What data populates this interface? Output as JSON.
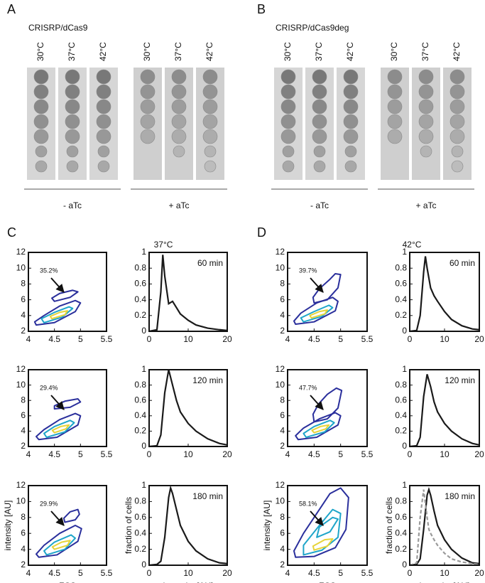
{
  "panels": [
    {
      "letter": "A",
      "title": "CRISRP/dCas9",
      "groups": [
        {
          "temps": [
            "30°C",
            "37°C",
            "42°C"
          ],
          "label": "- aTc"
        },
        {
          "temps": [
            "30°C",
            "37°C",
            "42°C"
          ],
          "label": "+ aTc"
        }
      ]
    },
    {
      "letter": "B",
      "title": "CRISRP/dCas9deg",
      "groups": [
        {
          "temps": [
            "30°C",
            "37°C",
            "42°C"
          ],
          "label": "- aTc"
        },
        {
          "temps": [
            "30°C",
            "37°C",
            "42°C"
          ],
          "label": "+ aTc"
        }
      ]
    },
    {
      "letter": "C",
      "title": "37°C"
    },
    {
      "letter": "D",
      "title": "42°C"
    }
  ],
  "chart_data": [
    {
      "type": "contour",
      "annotation": "35.2%",
      "xlim": [
        4,
        5.5
      ],
      "ylim": [
        2,
        12
      ],
      "xticks": [
        4,
        4.5,
        5,
        5.5
      ],
      "yticks": [
        2,
        4,
        6,
        8,
        10,
        12
      ],
      "series": [
        {
          "color": "#2a2f9c",
          "x": [
            4.15,
            4.5,
            4.9,
            5.0,
            4.9,
            4.6,
            4.3,
            4.12
          ],
          "values": [
            2.8,
            3.1,
            4.5,
            5.6,
            5.9,
            5.2,
            4.0,
            3.2
          ]
        },
        {
          "color": "#1ea5c9",
          "x": [
            4.3,
            4.65,
            4.85,
            4.78,
            4.5,
            4.25
          ],
          "values": [
            3.1,
            3.8,
            4.9,
            5.1,
            4.4,
            3.6
          ]
        },
        {
          "color": "#e6d43a",
          "x": [
            4.45,
            4.7,
            4.75,
            4.6,
            4.42
          ],
          "values": [
            3.6,
            4.1,
            4.6,
            4.4,
            3.9
          ]
        },
        {
          "color": "#2a2f9c",
          "x": [
            4.5,
            4.8,
            4.95,
            4.85,
            4.6,
            4.45
          ],
          "values": [
            5.8,
            6.3,
            7.0,
            7.2,
            6.8,
            6.2
          ]
        }
      ]
    },
    {
      "type": "line",
      "annotation": "60 min",
      "xlim": [
        0,
        20
      ],
      "ylim": [
        0,
        1
      ],
      "xticks": [
        0,
        10,
        20
      ],
      "yticks": [
        0,
        0.2,
        0.4,
        0.6,
        0.8,
        1
      ],
      "x": [
        0,
        2,
        3,
        3.5,
        4,
        5,
        6,
        7,
        8,
        10,
        12,
        15,
        18,
        20
      ],
      "series": [
        {
          "color": "#1a1a1a",
          "values": [
            0,
            0.02,
            0.5,
            0.97,
            0.7,
            0.35,
            0.38,
            0.3,
            0.22,
            0.14,
            0.08,
            0.04,
            0.02,
            0.01
          ]
        }
      ]
    },
    {
      "type": "contour",
      "annotation": "29.4%",
      "xlim": [
        4,
        5.5
      ],
      "ylim": [
        2,
        12
      ],
      "xticks": [
        4,
        4.5,
        5,
        5.5
      ],
      "yticks": [
        2,
        4,
        6,
        8,
        10,
        12
      ],
      "series": [
        {
          "color": "#2a2f9c",
          "x": [
            4.2,
            4.55,
            4.95,
            5.0,
            4.9,
            4.6,
            4.3,
            4.15
          ],
          "values": [
            2.9,
            3.2,
            4.8,
            6.0,
            6.3,
            5.5,
            4.2,
            3.3
          ]
        },
        {
          "color": "#1ea5c9",
          "x": [
            4.35,
            4.7,
            4.88,
            4.8,
            4.5,
            4.3
          ],
          "values": [
            3.2,
            3.9,
            5.1,
            5.4,
            4.6,
            3.7
          ]
        },
        {
          "color": "#e6d43a",
          "x": [
            4.5,
            4.72,
            4.78,
            4.62,
            4.46
          ],
          "values": [
            3.8,
            4.3,
            4.8,
            4.6,
            4.1
          ]
        },
        {
          "color": "#2a2f9c",
          "x": [
            4.5,
            4.8,
            5.0,
            4.95,
            4.7,
            4.5
          ],
          "values": [
            6.9,
            7.1,
            7.8,
            8.2,
            7.9,
            7.3
          ]
        }
      ]
    },
    {
      "type": "line",
      "annotation": "120 min",
      "xlim": [
        0,
        20
      ],
      "ylim": [
        0,
        1
      ],
      "xticks": [
        0,
        10,
        20
      ],
      "yticks": [
        0,
        0.2,
        0.4,
        0.6,
        0.8,
        1
      ],
      "x": [
        0,
        2,
        3,
        4,
        5,
        6,
        7,
        8,
        10,
        12,
        15,
        18,
        20
      ],
      "series": [
        {
          "color": "#1a1a1a",
          "values": [
            0,
            0.01,
            0.15,
            0.7,
            1,
            0.8,
            0.6,
            0.45,
            0.3,
            0.2,
            0.1,
            0.04,
            0.02
          ]
        }
      ]
    },
    {
      "type": "contour",
      "annotation": "29.9%",
      "xlim": [
        4,
        5.5
      ],
      "ylim": [
        2,
        12
      ],
      "xticks": [
        4,
        4.5,
        5,
        5.5
      ],
      "yticks": [
        2,
        4,
        6,
        8,
        10,
        12
      ],
      "x_label": "FCS",
      "y_label": "intensity [AU]",
      "series": [
        {
          "color": "#2a2f9c",
          "x": [
            4.2,
            4.55,
            4.95,
            5.02,
            4.9,
            4.6,
            4.3,
            4.15
          ],
          "values": [
            3.0,
            3.3,
            5.0,
            6.6,
            7.0,
            6.0,
            4.5,
            3.4
          ]
        },
        {
          "color": "#1ea5c9",
          "x": [
            4.35,
            4.7,
            4.9,
            4.82,
            4.5,
            4.3
          ],
          "values": [
            3.3,
            4.0,
            5.4,
            5.8,
            4.9,
            3.8
          ]
        },
        {
          "color": "#e6d43a",
          "x": [
            4.5,
            4.75,
            4.8,
            4.64,
            4.46
          ],
          "values": [
            4.0,
            4.5,
            5.1,
            4.9,
            4.3
          ]
        },
        {
          "color": "#2a2f9c",
          "x": [
            4.7,
            4.9,
            4.98,
            4.95,
            4.8,
            4.68
          ],
          "values": [
            7.4,
            7.7,
            8.4,
            9.0,
            8.7,
            7.9
          ]
        }
      ]
    },
    {
      "type": "line",
      "annotation": "180 min",
      "xlim": [
        0,
        20
      ],
      "ylim": [
        0,
        1
      ],
      "xticks": [
        0,
        10,
        20
      ],
      "yticks": [
        0,
        0.2,
        0.4,
        0.6,
        0.8,
        1
      ],
      "x_label": "intensity [AU]",
      "y_label": "fraction of cells",
      "x": [
        0,
        2,
        3,
        4,
        5,
        5.5,
        6,
        7,
        8,
        10,
        12,
        15,
        18,
        20
      ],
      "series": [
        {
          "color": "#1a1a1a",
          "values": [
            0,
            0.01,
            0.05,
            0.35,
            0.85,
            0.97,
            0.9,
            0.7,
            0.5,
            0.3,
            0.18,
            0.08,
            0.03,
            0.02
          ]
        }
      ]
    },
    {
      "type": "contour",
      "annotation": "39.7%",
      "xlim": [
        4,
        5.5
      ],
      "ylim": [
        2,
        12
      ],
      "xticks": [
        4,
        4.5,
        5,
        5.5
      ],
      "yticks": [
        2,
        4,
        6,
        8,
        10,
        12
      ],
      "series": [
        {
          "color": "#2a2f9c",
          "x": [
            4.15,
            4.5,
            4.9,
            4.95,
            4.85,
            4.55,
            4.25,
            4.12
          ],
          "values": [
            2.9,
            3.2,
            4.6,
            5.8,
            6.3,
            5.6,
            4.3,
            3.3
          ]
        },
        {
          "color": "#1ea5c9",
          "x": [
            4.3,
            4.65,
            4.85,
            4.78,
            4.5,
            4.25
          ],
          "values": [
            3.2,
            3.9,
            5.0,
            5.3,
            4.5,
            3.7
          ]
        },
        {
          "color": "#e6d43a",
          "x": [
            4.45,
            4.7,
            4.75,
            4.6,
            4.42
          ],
          "values": [
            3.7,
            4.2,
            4.7,
            4.5,
            4.0
          ]
        },
        {
          "color": "#2a2f9c",
          "x": [
            4.5,
            4.75,
            4.95,
            5.0,
            4.9,
            4.8,
            4.6,
            4.48
          ],
          "values": [
            5.6,
            6.0,
            7.5,
            9.2,
            9.3,
            8.6,
            7.4,
            6.3
          ]
        }
      ]
    },
    {
      "type": "line",
      "annotation": "60 min",
      "xlim": [
        0,
        20
      ],
      "ylim": [
        0,
        1
      ],
      "xticks": [
        0,
        10,
        20
      ],
      "yticks": [
        0,
        0.2,
        0.4,
        0.6,
        0.8,
        1
      ],
      "x": [
        0,
        2,
        3,
        4,
        4.5,
        5,
        6,
        7,
        8,
        10,
        12,
        15,
        18,
        20
      ],
      "series": [
        {
          "color": "#1a1a1a",
          "values": [
            0,
            0.01,
            0.2,
            0.75,
            0.95,
            0.8,
            0.55,
            0.45,
            0.38,
            0.25,
            0.15,
            0.07,
            0.03,
            0.02
          ]
        }
      ]
    },
    {
      "type": "contour",
      "annotation": "47.7%",
      "xlim": [
        4,
        5.5
      ],
      "ylim": [
        2,
        12
      ],
      "xticks": [
        4,
        4.5,
        5,
        5.5
      ],
      "yticks": [
        2,
        4,
        6,
        8,
        10,
        12
      ],
      "series": [
        {
          "color": "#2a2f9c",
          "x": [
            4.2,
            4.55,
            4.95,
            5.0,
            4.9,
            4.6,
            4.3,
            4.15
          ],
          "values": [
            2.9,
            3.2,
            4.8,
            6.0,
            6.4,
            5.6,
            4.4,
            3.4
          ]
        },
        {
          "color": "#1ea5c9",
          "x": [
            4.35,
            4.7,
            4.88,
            4.8,
            4.5,
            4.3
          ],
          "values": [
            3.2,
            3.9,
            5.1,
            5.4,
            4.6,
            3.7
          ]
        },
        {
          "color": "#e6d43a",
          "x": [
            4.5,
            4.72,
            4.78,
            4.62,
            4.46
          ],
          "values": [
            3.8,
            4.3,
            4.8,
            4.6,
            4.1
          ]
        },
        {
          "color": "#2a2f9c",
          "x": [
            4.5,
            4.75,
            4.95,
            5.02,
            4.92,
            4.75,
            4.58,
            4.48
          ],
          "values": [
            5.2,
            5.6,
            7.0,
            9.3,
            9.6,
            8.8,
            7.5,
            6.2
          ]
        }
      ]
    },
    {
      "type": "line",
      "annotation": "120 min",
      "xlim": [
        0,
        20
      ],
      "ylim": [
        0,
        1
      ],
      "xticks": [
        0,
        10,
        20
      ],
      "yticks": [
        0,
        0.2,
        0.4,
        0.6,
        0.8,
        1
      ],
      "x": [
        0,
        2,
        3,
        4,
        5,
        6,
        7,
        8,
        10,
        12,
        15,
        18,
        20
      ],
      "series": [
        {
          "color": "#1a1a1a",
          "values": [
            0,
            0.01,
            0.12,
            0.65,
            0.94,
            0.78,
            0.58,
            0.45,
            0.3,
            0.2,
            0.1,
            0.04,
            0.02
          ]
        }
      ]
    },
    {
      "type": "contour",
      "annotation": "58.1%",
      "xlim": [
        4,
        5.5
      ],
      "ylim": [
        2,
        12
      ],
      "xticks": [
        4,
        4.5,
        5,
        5.5
      ],
      "yticks": [
        2,
        4,
        6,
        8,
        10,
        12
      ],
      "x_label": "FCS",
      "y_label": "intensity [AU]",
      "series": [
        {
          "color": "#2a2f9c",
          "x": [
            4.15,
            4.5,
            4.9,
            5.1,
            5.15,
            5.0,
            4.8,
            4.55,
            4.3,
            4.12
          ],
          "values": [
            3.0,
            3.1,
            4.2,
            6.5,
            10.5,
            11.7,
            11.0,
            8.5,
            6.0,
            3.8
          ]
        },
        {
          "color": "#1ea5c9",
          "x": [
            4.3,
            4.65,
            4.95,
            5.0,
            4.85,
            4.6,
            4.3
          ],
          "values": [
            3.3,
            3.9,
            5.5,
            8.5,
            9.0,
            7.0,
            4.5
          ]
        },
        {
          "color": "#e6d43a",
          "x": [
            4.5,
            4.75,
            4.85,
            4.7,
            4.48
          ],
          "values": [
            3.9,
            4.4,
            5.3,
            5.2,
            4.4
          ]
        },
        {
          "color": "#1ea5c9",
          "x": [
            4.55,
            4.8,
            4.95,
            4.85,
            4.6
          ],
          "values": [
            5.5,
            6.2,
            7.8,
            8.0,
            6.8
          ]
        }
      ]
    },
    {
      "type": "line",
      "annotation": "180 min",
      "xlim": [
        0,
        20
      ],
      "ylim": [
        0,
        1
      ],
      "xticks": [
        0,
        10,
        20
      ],
      "yticks": [
        0,
        0.2,
        0.4,
        0.6,
        0.8,
        1
      ],
      "x_label": "intensity [AU]",
      "y_label": "fraction of cells",
      "x": [
        0,
        2,
        3,
        4,
        5,
        5.5,
        6,
        7,
        8,
        10,
        12,
        15,
        18,
        20
      ],
      "series": [
        {
          "color": "#1a1a1a",
          "values": [
            0,
            0.01,
            0.08,
            0.45,
            0.88,
            0.95,
            0.88,
            0.68,
            0.5,
            0.32,
            0.2,
            0.09,
            0.03,
            0.02
          ]
        },
        {
          "color": "#9a9a9a",
          "dash": true,
          "values": [
            0,
            0.03,
            0.6,
            0.95,
            0.6,
            0.45,
            0.4,
            0.32,
            0.25,
            0.15,
            0.08,
            0.04,
            0.02,
            0.01
          ]
        }
      ]
    }
  ]
}
